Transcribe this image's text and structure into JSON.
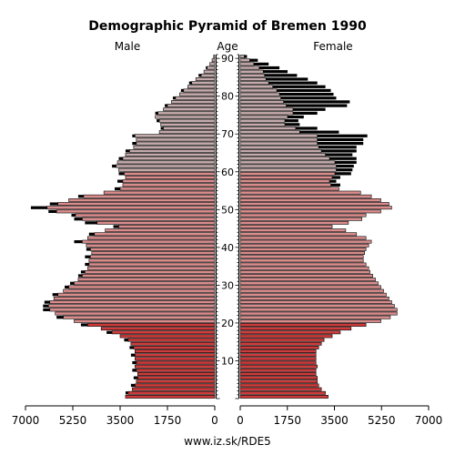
{
  "chart_data": {
    "type": "bar",
    "title": "Demographic Pyramid of Bremen 1990",
    "left_label": "Male",
    "center_label": "Age",
    "right_label": "Female",
    "footer": "www.iz.sk/RDE5",
    "xlim": [
      0,
      7000
    ],
    "x_ticks": [
      "7000",
      "5250",
      "3500",
      "1750",
      "0"
    ],
    "x_ticks_right": [
      "0",
      "1750",
      "3500",
      "5250",
      "7000"
    ],
    "age_ticks": [
      "10",
      "20",
      "30",
      "40",
      "50",
      "60",
      "70",
      "80",
      "90"
    ],
    "series": [
      {
        "name": "Male",
        "values": [
          3300,
          3200,
          3050,
          2950,
          2900,
          2850,
          2850,
          2900,
          2950,
          2900,
          2950,
          2950,
          2950,
          3000,
          3100,
          3200,
          3500,
          3800,
          4200,
          4700,
          5200,
          5600,
          5900,
          6100,
          6150,
          6100,
          5950,
          5800,
          5600,
          5400,
          5200,
          5050,
          4900,
          4800,
          4700,
          4650,
          4650,
          4600,
          4550,
          4600,
          4750,
          4900,
          4700,
          4450,
          4050,
          3550,
          4350,
          4900,
          5150,
          5850,
          6200,
          5800,
          5400,
          4850,
          4100,
          3500,
          3400,
          3400,
          3300,
          3350,
          3550,
          3650,
          3600,
          3400,
          3300,
          3150,
          3000,
          2900,
          2900,
          2950,
          2050,
          1900,
          2000,
          2050,
          2200,
          2100,
          1900,
          1750,
          1600,
          1450,
          1300,
          1150,
          1000,
          850,
          700,
          500,
          400,
          280,
          180,
          100,
          40
        ],
        "excess": [
          0,
          100,
          0,
          150,
          0,
          150,
          0,
          150,
          0,
          150,
          0,
          150,
          0,
          150,
          0,
          150,
          0,
          200,
          0,
          250,
          0,
          250,
          0,
          250,
          200,
          200,
          0,
          200,
          0,
          150,
          150,
          0,
          150,
          150,
          0,
          150,
          0,
          200,
          0,
          150,
          0,
          300,
          0,
          200,
          0,
          200,
          450,
          300,
          150,
          300,
          600,
          300,
          0,
          200,
          0,
          200,
          0,
          200,
          0,
          200,
          0,
          150,
          0,
          150,
          0,
          150,
          0,
          150,
          0,
          100,
          0,
          100,
          0,
          100,
          0,
          100,
          0,
          100,
          0,
          100,
          0,
          100,
          0,
          100,
          0,
          100,
          0,
          50,
          0,
          0,
          0
        ]
      },
      {
        "name": "Female",
        "values": [
          3250,
          3150,
          3000,
          2900,
          2850,
          2850,
          2800,
          2800,
          2850,
          2800,
          2800,
          2800,
          2800,
          2900,
          3000,
          3100,
          3400,
          3700,
          4100,
          4650,
          5200,
          5550,
          5800,
          5800,
          5700,
          5600,
          5500,
          5400,
          5300,
          5200,
          5100,
          5000,
          4900,
          4800,
          4750,
          4650,
          4550,
          4550,
          4600,
          4650,
          4750,
          4850,
          4650,
          4300,
          3900,
          3400,
          4000,
          4500,
          4650,
          5200,
          5600,
          5500,
          5200,
          4850,
          4450,
          3650,
          3350,
          3300,
          3400,
          3500,
          3550,
          3550,
          3500,
          3300,
          3150,
          3000,
          2900,
          2850,
          2850,
          2850,
          2200,
          2050,
          1650,
          1650,
          1750,
          1950,
          1950,
          1700,
          1600,
          1500,
          1450,
          1350,
          1200,
          1050,
          950,
          900,
          850,
          700,
          500,
          350,
          150
        ],
        "excess": [
          0,
          0,
          0,
          0,
          0,
          0,
          0,
          0,
          0,
          0,
          0,
          0,
          0,
          0,
          0,
          0,
          0,
          0,
          0,
          0,
          0,
          0,
          0,
          0,
          0,
          0,
          0,
          0,
          0,
          0,
          0,
          0,
          0,
          0,
          0,
          0,
          0,
          0,
          0,
          0,
          0,
          0,
          0,
          0,
          0,
          0,
          0,
          0,
          0,
          0,
          0,
          0,
          0,
          0,
          0,
          0,
          350,
          250,
          300,
          600,
          600,
          650,
          800,
          1000,
          1000,
          1300,
          1400,
          1700,
          1700,
          1850,
          1450,
          800,
          550,
          500,
          600,
          900,
          1200,
          2250,
          2450,
          2050,
          2000,
          2000,
          1950,
          1800,
          1550,
          1200,
          900,
          750,
          550,
          300,
          100
        ]
      }
    ],
    "colors": {
      "young": "#ce3b3b",
      "middle": "#d98c8c",
      "old": "#c4aaaa",
      "excess": "#000000",
      "bar_outline": "#000000"
    }
  }
}
